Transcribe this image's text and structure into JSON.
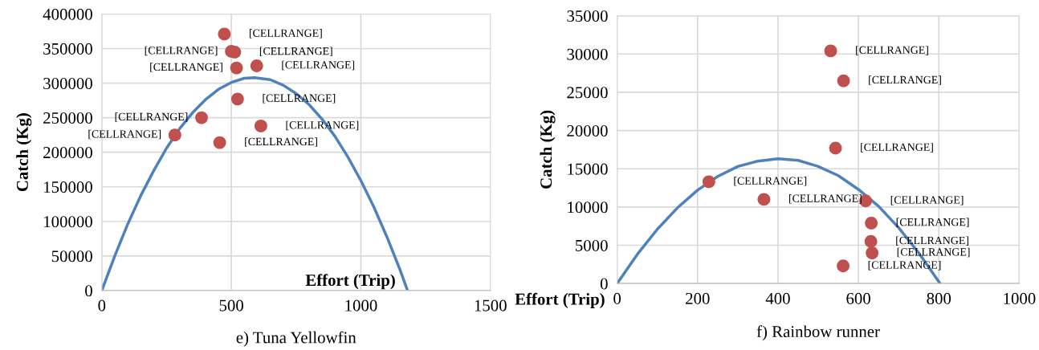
{
  "chart_data": [
    {
      "type": "scatter",
      "title": "e) Tuna Yellowfin",
      "xlabel": "Effort (Trip)",
      "ylabel": "Catch (Kg)",
      "xlim": [
        0,
        1500
      ],
      "xticks": [
        0,
        500,
        1000,
        1500
      ],
      "ylim": [
        0,
        400000
      ],
      "yticks": [
        0,
        50000,
        100000,
        150000,
        200000,
        250000,
        300000,
        350000,
        400000
      ],
      "grid": true,
      "series": [
        {
          "type": "scatter",
          "marker": "circle",
          "color": "#c0504d",
          "x": [
            282,
            385,
            455,
            473,
            500,
            513,
            520,
            524,
            598,
            614
          ],
          "values": [
            225000,
            250000,
            214000,
            371000,
            346000,
            345000,
            322000,
            277000,
            325000,
            238000
          ]
        },
        {
          "type": "line",
          "marker": "none",
          "color": "#4f81bd",
          "x": [
            0,
            50,
            100,
            150,
            200,
            250,
            300,
            350,
            400,
            450,
            500,
            550,
            590,
            650,
            700,
            750,
            800,
            850,
            900,
            950,
            1000,
            1050,
            1100,
            1150,
            1180
          ],
          "values": [
            0,
            50000,
            96000,
            137000,
            173000,
            206000,
            234000,
            257000,
            276000,
            291000,
            301000,
            307000,
            308000,
            305000,
            297000,
            285000,
            269000,
            248000,
            223000,
            193000,
            159000,
            121000,
            78000,
            31000,
            0
          ]
        }
      ],
      "annotations": [
        {
          "text": "[CELLRANGE]",
          "x": 282,
          "y": 225000
        },
        {
          "text": "[CELLRANGE]",
          "x": 385,
          "y": 250000
        },
        {
          "text": "[CELLRANGE]",
          "x": 455,
          "y": 214000
        },
        {
          "text": "[CELLRANGE]",
          "x": 473,
          "y": 371000
        },
        {
          "text": "[CELLRANGE]",
          "x": 500,
          "y": 346000
        },
        {
          "text": "[CELLRANGE]",
          "x": 513,
          "y": 345000
        },
        {
          "text": "[CELLRANGE]",
          "x": 520,
          "y": 322000
        },
        {
          "text": "[CELLRANGE]",
          "x": 524,
          "y": 277000
        },
        {
          "text": "[CELLRANGE]",
          "x": 598,
          "y": 325000
        },
        {
          "text": "[CELLRANGE]",
          "x": 614,
          "y": 238000
        }
      ]
    },
    {
      "type": "scatter",
      "title": "f) Rainbow runner",
      "xlabel": "Effort (Trip)",
      "ylabel": "Catch (Kg)",
      "xlim": [
        0,
        1000
      ],
      "xticks": [
        0,
        200,
        400,
        600,
        800,
        1000
      ],
      "ylim": [
        0,
        35000
      ],
      "yticks": [
        0,
        5000,
        10000,
        15000,
        20000,
        25000,
        30000,
        35000
      ],
      "grid": true,
      "series": [
        {
          "type": "scatter",
          "marker": "circle",
          "color": "#c0504d",
          "x": [
            228,
            365,
            531,
            543,
            563,
            562,
            618,
            632,
            631,
            634
          ],
          "values": [
            13300,
            11000,
            30400,
            17700,
            26500,
            2300,
            10800,
            7900,
            5500,
            4000
          ]
        },
        {
          "type": "line",
          "marker": "none",
          "color": "#4f81bd",
          "x": [
            0,
            50,
            100,
            150,
            200,
            250,
            300,
            350,
            400,
            450,
            500,
            550,
            600,
            650,
            700,
            750,
            803
          ],
          "values": [
            0,
            3800,
            7100,
            9900,
            12200,
            14000,
            15300,
            16000,
            16300,
            16100,
            15300,
            14100,
            12300,
            10100,
            7300,
            4000,
            0
          ]
        }
      ],
      "annotations": [
        {
          "text": "[CELLRANGE]",
          "x": 228,
          "y": 13300
        },
        {
          "text": "[CELLRANGE]",
          "x": 365,
          "y": 11000
        },
        {
          "text": "[CELLRANGE]",
          "x": 531,
          "y": 30400
        },
        {
          "text": "[CELLRANGE]",
          "x": 543,
          "y": 17700
        },
        {
          "text": "[CELLRANGE]",
          "x": 563,
          "y": 26500
        },
        {
          "text": "[CELLRANGE]",
          "x": 562,
          "y": 2300
        },
        {
          "text": "[CELLRANGE]",
          "x": 618,
          "y": 10800
        },
        {
          "text": "[CELLRANGE]",
          "x": 632,
          "y": 7900
        },
        {
          "text": "[CELLRANGE]",
          "x": 631,
          "y": 5500
        },
        {
          "text": "[CELLRANGE]",
          "x": 634,
          "y": 4000
        }
      ]
    }
  ]
}
